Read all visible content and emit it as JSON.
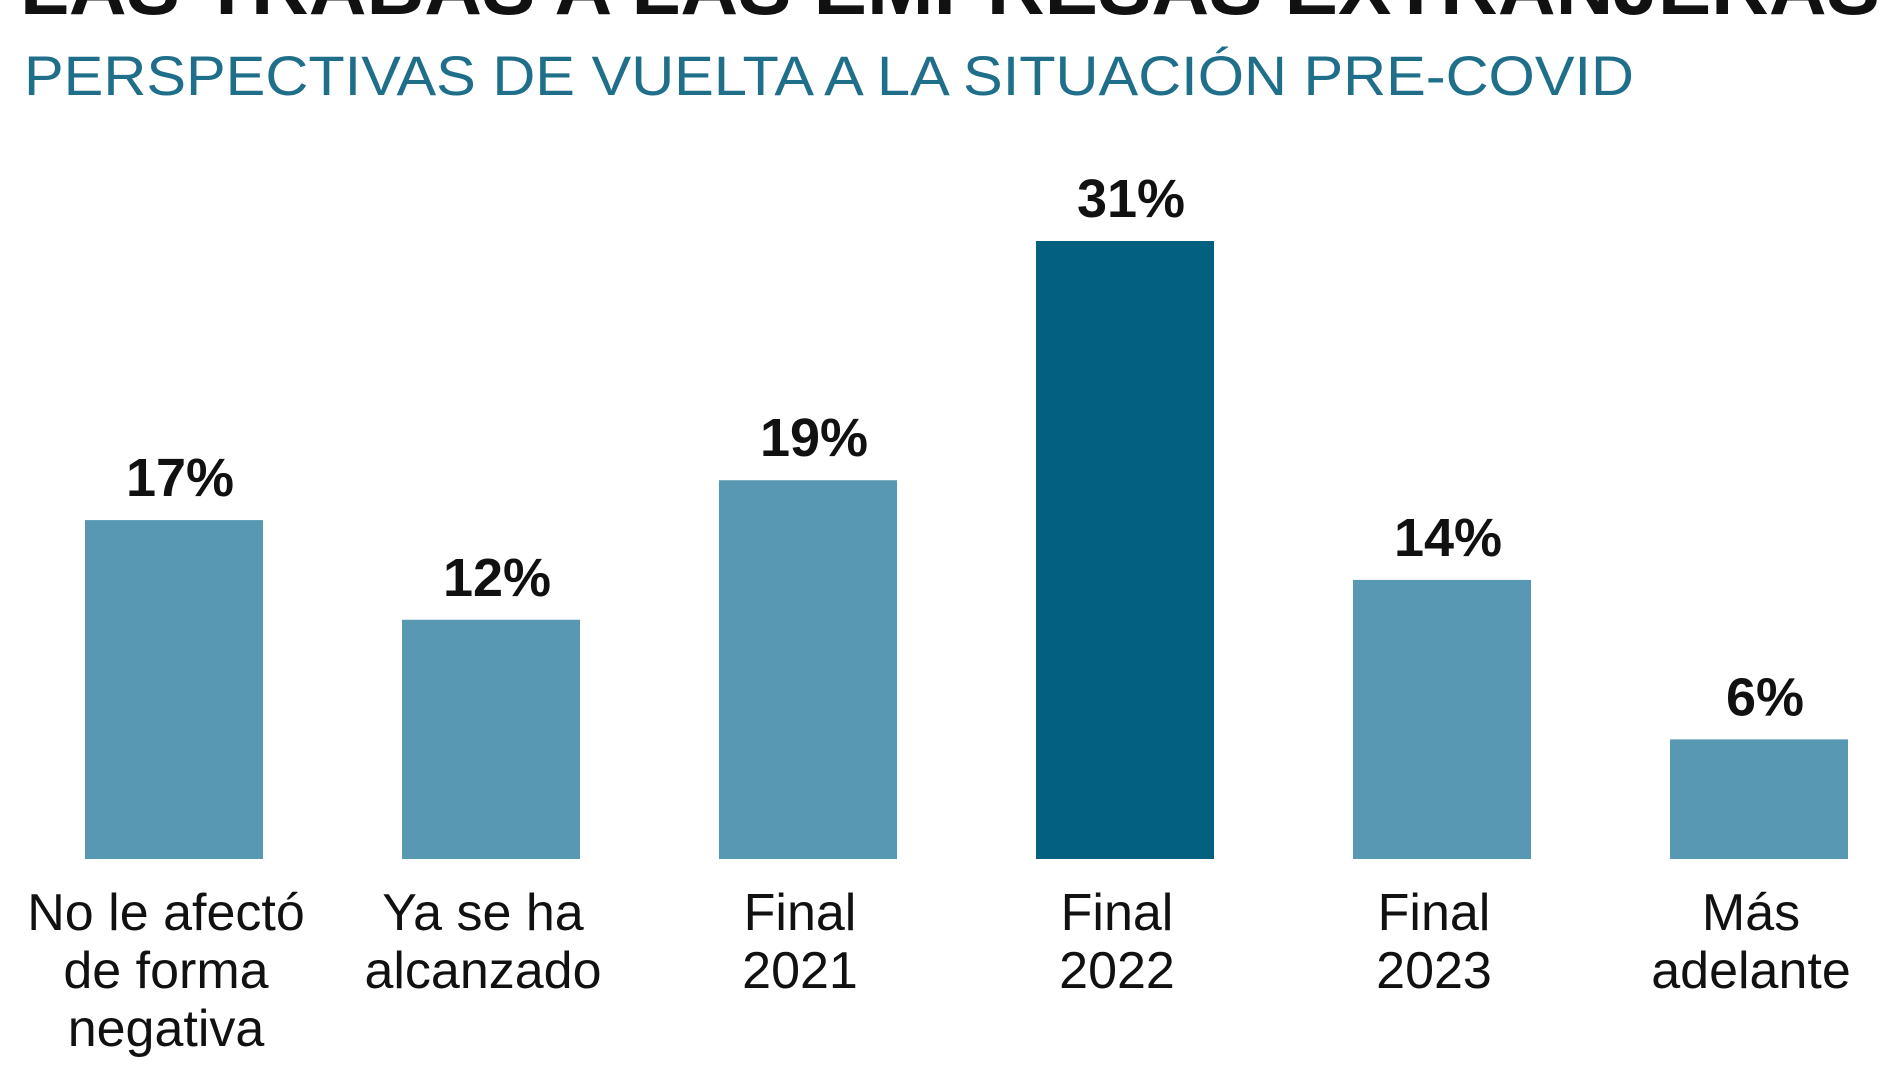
{
  "header": {
    "title": "LAS TRABAS A LAS EMPRESAS EXTRANJERAS",
    "subtitle": "PERSPECTIVAS DE VUELTA A LA SITUACIÓN PRE-COVID"
  },
  "colors": {
    "bar": "#5898b2",
    "bar_highlight": "#03617f",
    "subtitle": "#1f6f8b"
  },
  "chart_data": {
    "type": "bar",
    "title": "LAS TRABAS A LAS EMPRESAS EXTRANJERAS",
    "subtitle": "PERSPECTIVAS DE VUELTA A LA SITUACIÓN PRE-COVID",
    "categories": [
      "No le afectó de forma negativa",
      "Ya se ha alcanzado",
      "Final 2021",
      "Final 2022",
      "Final 2023",
      "Más adelante"
    ],
    "category_lines": [
      [
        "No le afectó",
        "de forma",
        "negativa"
      ],
      [
        "Ya se ha",
        "alcanzado"
      ],
      [
        "Final",
        "2021"
      ],
      [
        "Final",
        "2022"
      ],
      [
        "Final",
        "2023"
      ],
      [
        "Más",
        "adelante"
      ]
    ],
    "values": [
      17,
      12,
      19,
      31,
      14,
      6
    ],
    "value_labels": [
      "17%",
      "12%",
      "19%",
      "31%",
      "14%",
      "6%"
    ],
    "highlight_index": 3,
    "unit": "%",
    "ylim": [
      0,
      31
    ],
    "grid": false,
    "legend": "none"
  }
}
